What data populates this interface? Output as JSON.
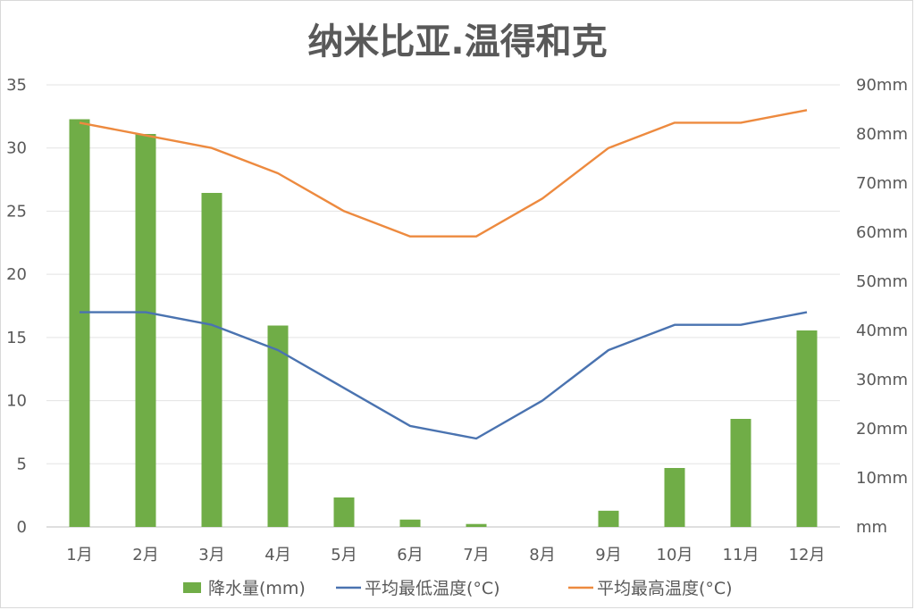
{
  "chart_data": {
    "type": "bar+line",
    "title": "纳米比亚.温得和克",
    "categories": [
      "1月",
      "2月",
      "3月",
      "4月",
      "5月",
      "6月",
      "7月",
      "8月",
      "9月",
      "10月",
      "11月",
      "12月"
    ],
    "y_left": {
      "ticks": [
        "0",
        "5",
        "10",
        "15",
        "20",
        "25",
        "30",
        "35"
      ],
      "ylim": [
        0,
        35
      ]
    },
    "y_right": {
      "ticks": [
        "mm",
        "10mm",
        "20mm",
        "30mm",
        "40mm",
        "50mm",
        "60mm",
        "70mm",
        "80mm",
        "90mm"
      ],
      "ylim": [
        0,
        90
      ]
    },
    "grid": true,
    "legend_position": "bottom",
    "series": [
      {
        "name": "降水量(mm)",
        "kind": "bar",
        "axis": "right",
        "color": "#70ad47",
        "values": [
          83,
          80,
          68,
          41,
          6,
          1.5,
          0.6,
          0,
          3.3,
          12,
          22,
          40
        ]
      },
      {
        "name": "平均最低温度(°C)",
        "kind": "line",
        "axis": "left",
        "color": "#4a73b0",
        "values": [
          17,
          17,
          16,
          14,
          11,
          8,
          7,
          10,
          14,
          16,
          16,
          17
        ]
      },
      {
        "name": "平均最高温度(°C)",
        "kind": "line",
        "axis": "left",
        "color": "#ed8a3f",
        "values": [
          32,
          31,
          30,
          28,
          25,
          23,
          23,
          26,
          30,
          32,
          32,
          33
        ]
      }
    ]
  }
}
